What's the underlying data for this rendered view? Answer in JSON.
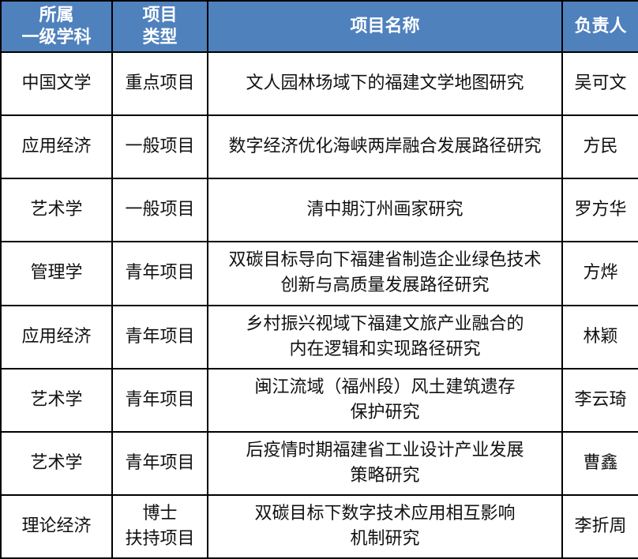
{
  "table": {
    "headers": [
      "所属\n一级学科",
      "项目\n类型",
      "项目名称",
      "负责人"
    ],
    "header_color": "#4f81bd",
    "rows": [
      [
        "中国文学",
        "重点项目",
        "文人园林场域下的福建文学地图研究",
        "吴可文"
      ],
      [
        "应用经济",
        "一般项目",
        "数字经济优化海峡两岸融合发展路径研究",
        "方民"
      ],
      [
        "艺术学",
        "一般项目",
        "清中期汀州画家研究",
        "罗方华"
      ],
      [
        "管理学",
        "青年项目",
        "双碳目标导向下福建省制造企业绿色技术\n创新与高质量发展路径研究",
        "方烨"
      ],
      [
        "应用经济",
        "青年项目",
        "乡村振兴视域下福建文旅产业融合的\n内在逻辑和实现路径研究",
        "林颖"
      ],
      [
        "艺术学",
        "青年项目",
        "闽江流域（福州段）风土建筑遗存\n保护研究",
        "李云琦"
      ],
      [
        "艺术学",
        "青年项目",
        "后疫情时期福建省工业设计产业发展\n策略研究",
        "曹鑫"
      ],
      [
        "理论经济",
        "博士\n扶持项目",
        "双碳目标下数字技术应用相互影响\n机制研究",
        "李折周"
      ]
    ]
  }
}
